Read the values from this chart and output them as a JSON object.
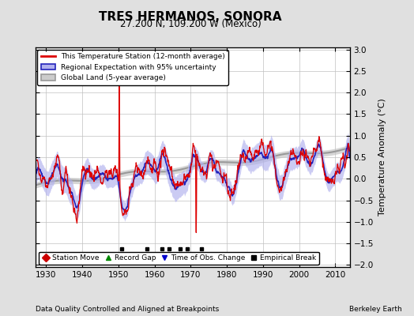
{
  "title": "TRES HERMANOS, SONORA",
  "subtitle": "27.200 N, 109.200 W (Mexico)",
  "ylabel": "Temperature Anomaly (°C)",
  "xlabel_left": "Data Quality Controlled and Aligned at Breakpoints",
  "xlabel_right": "Berkeley Earth",
  "xlim": [
    1927,
    2014
  ],
  "ylim": [
    -2.05,
    3.05
  ],
  "yticks": [
    -2,
    -1.5,
    -1,
    -0.5,
    0,
    0.5,
    1,
    1.5,
    2,
    2.5,
    3
  ],
  "xticks": [
    1930,
    1940,
    1950,
    1960,
    1970,
    1980,
    1990,
    2000,
    2010
  ],
  "bg_color": "#e0e0e0",
  "plot_bg_color": "#ffffff",
  "grid_color": "#c0c0c0",
  "station_color": "#dd0000",
  "regional_color": "#2222bb",
  "regional_fill": "#b0b0ee",
  "global_color": "#999999",
  "global_fill": "#cccccc",
  "empirical_break_years": [
    1951,
    1958,
    1962,
    1964,
    1967,
    1969,
    1973
  ],
  "seed": 17
}
